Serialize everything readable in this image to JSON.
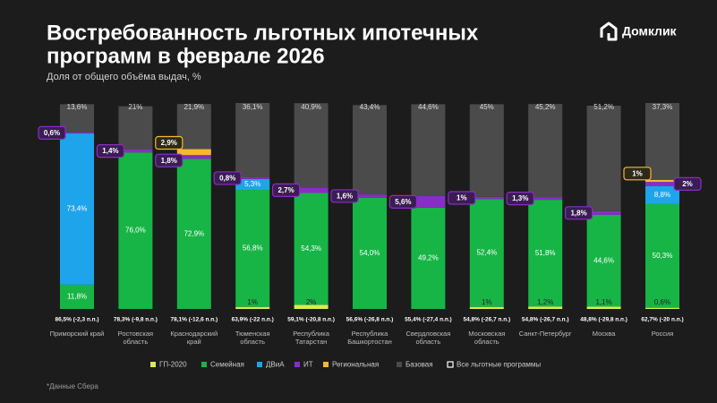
{
  "chart_data": {
    "type": "stacked_bar",
    "title_lines": [
      "Востребованность льготных ипотечных",
      "программ в феврале 2026"
    ],
    "subtitle": "Доля от общего объёма выдач, %",
    "brand": "Домклик",
    "footnote": "*Данные Сбера",
    "ylim": [
      0,
      100
    ],
    "categories": [
      "Приморский край",
      "Ростовская область",
      "Краснодарский край",
      "Тюменская область",
      "Республика Татарстан",
      "Республика Башкортостан",
      "Свердловская область",
      "Московская область",
      "Санкт-Петербург",
      "Москва",
      "Россия"
    ],
    "series": [
      {
        "name": "ГП-2020",
        "color": "#d9ec4f",
        "values": [
          null,
          null,
          null,
          1,
          2,
          null,
          null,
          1,
          1.2,
          1.1,
          0.6
        ],
        "value_labels": [
          null,
          null,
          null,
          "1%",
          "2%",
          null,
          null,
          "1%",
          "1,2%",
          "1,1%",
          "0,6%"
        ]
      },
      {
        "name": "Семейная",
        "color": "#17b546",
        "values": [
          11.8,
          76.0,
          72.9,
          56.8,
          54.3,
          54.0,
          49.2,
          52.4,
          51.8,
          44.6,
          50.3
        ],
        "value_labels": [
          "11,8%",
          "76,0%",
          "72,9%",
          "56,8%",
          "54,3%",
          "54,0%",
          "49,2%",
          "52,4%",
          "51,8%",
          "44,6%",
          "50,3%"
        ]
      },
      {
        "name": "ДВиА",
        "color": "#1ea4ea",
        "values": [
          73.4,
          null,
          null,
          5.3,
          null,
          null,
          null,
          null,
          null,
          null,
          8.8
        ],
        "value_labels": [
          "73,4%",
          null,
          null,
          "5,3%",
          null,
          null,
          null,
          null,
          null,
          null,
          "8,8%"
        ]
      },
      {
        "name": "ИТ",
        "color": "#8a2cc7",
        "values": [
          0.6,
          1.4,
          1.8,
          0.8,
          2.7,
          1.6,
          5.6,
          1,
          1.3,
          1.8,
          2
        ],
        "value_labels": [
          "0,6%",
          "1,4%",
          "1,8%",
          "0,8%",
          "2,7%",
          "1,6%",
          "5,6%",
          "1%",
          "1,3%",
          "1,8%",
          "2%"
        ]
      },
      {
        "name": "Региональная",
        "color": "#f6b92c",
        "values": [
          null,
          null,
          2.9,
          null,
          null,
          null,
          null,
          null,
          null,
          null,
          1
        ],
        "value_labels": [
          null,
          null,
          "2,9%",
          null,
          null,
          null,
          null,
          null,
          null,
          null,
          "1%"
        ]
      },
      {
        "name": "Базовая",
        "color": "#4b4b4b",
        "values": [
          13.6,
          21,
          21.9,
          36.1,
          40.9,
          43.4,
          44.6,
          45,
          45.2,
          51.2,
          37.3
        ],
        "value_labels": [
          "13,6%",
          "21%",
          "21,9%",
          "36,1%",
          "40,9%",
          "43,4%",
          "44,6%",
          "45%",
          "45,2%",
          "51,2%",
          "37,3%"
        ]
      }
    ],
    "totals": {
      "name": "Все льготные программы",
      "value_labels": [
        "86,5% (-2,3 п.п.)",
        "78,3% (-9,8 п.п.)",
        "78,1% (-12,6 п.п.)",
        "63,9% (-22 п.п.)",
        "59,1% (-20,8 п.п.)",
        "56,6% (-26,8 п.п.)",
        "55,4% (-27,4 п.п.)",
        "54,8% (-26,7 п.п.)",
        "54,8% (-26,7 п.п.)",
        "48,8% (-29,8 п.п.)",
        "62,7% (-20 п.п.)"
      ]
    }
  }
}
